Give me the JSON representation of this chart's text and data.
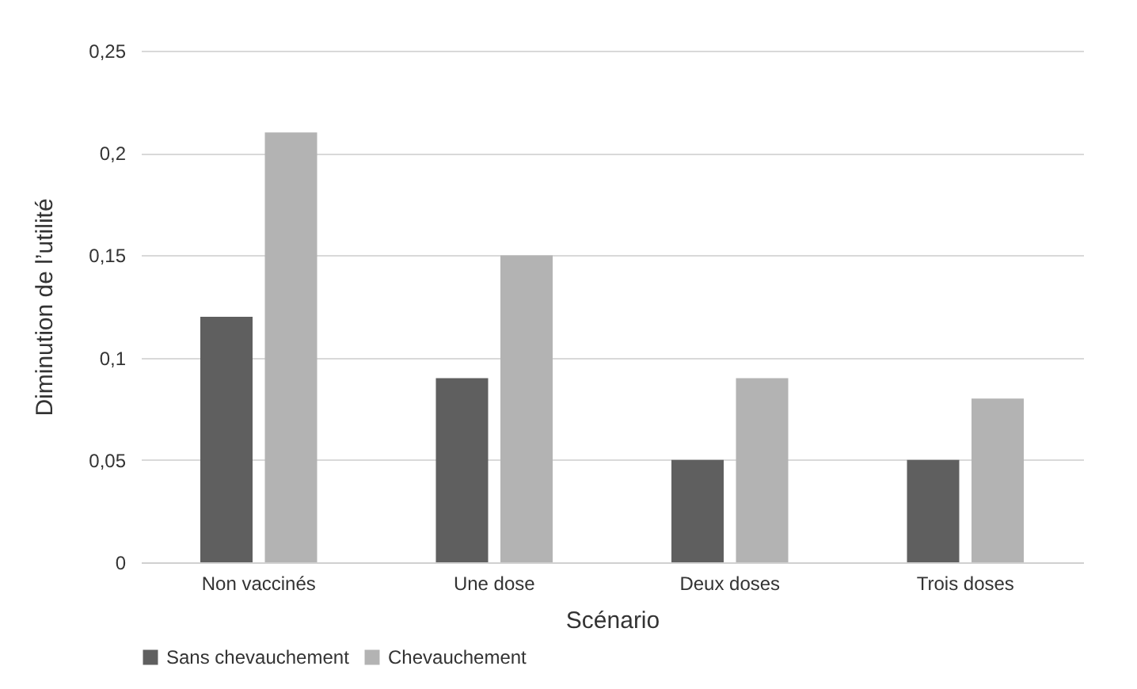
{
  "chart_data": {
    "type": "bar",
    "xlabel": "Scénario",
    "ylabel": "Diminution de l’utilité",
    "categories": [
      "Non vaccinés",
      "Une dose",
      "Deux doses",
      "Trois doses"
    ],
    "series": [
      {
        "name": "Sans chevauchement",
        "color": "#5f5f5f",
        "values": [
          0.12,
          0.09,
          0.05,
          0.05
        ]
      },
      {
        "name": "Chevauchement",
        "color": "#b3b3b3",
        "values": [
          0.21,
          0.15,
          0.09,
          0.08
        ]
      }
    ],
    "ylim": [
      0,
      0.25
    ],
    "yticks": [
      0,
      {
        "value": 0.05,
        "label": "0,05"
      },
      {
        "value": 0.1,
        "label": "0,1"
      },
      {
        "value": 0.15,
        "label": "0,15"
      },
      {
        "value": 0.2,
        "label": "0,2"
      },
      {
        "value": 0.25,
        "label": "0,25"
      }
    ],
    "grid": "y",
    "legend": "bottom"
  }
}
